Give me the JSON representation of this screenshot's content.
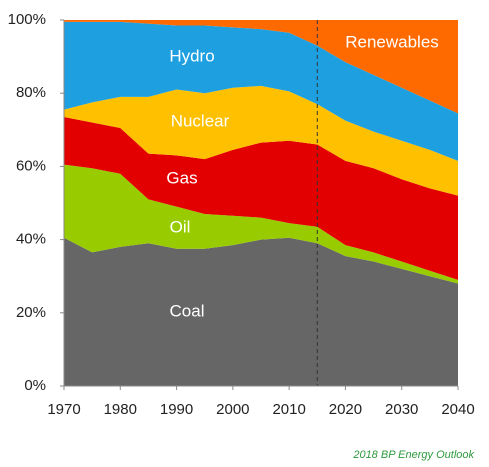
{
  "chart_data": {
    "type": "stacked_area",
    "x": [
      1970,
      1975,
      1980,
      1985,
      1990,
      1995,
      2000,
      2005,
      2010,
      2015,
      2020,
      2025,
      2030,
      2035,
      2040
    ],
    "series": [
      {
        "name": "Coal",
        "color": "#666666",
        "values": [
          40.5,
          36.5,
          38,
          39,
          37.5,
          37.5,
          38.5,
          40,
          40.5,
          39,
          35.5,
          34,
          32,
          30,
          28
        ]
      },
      {
        "name": "Oil",
        "color": "#99cc00",
        "values": [
          20,
          23,
          20,
          12,
          11.5,
          9.5,
          8,
          6,
          4,
          4.5,
          3,
          2.5,
          2,
          1.5,
          1
        ]
      },
      {
        "name": "Gas",
        "color": "#e30000",
        "values": [
          13,
          12.5,
          12.5,
          12.5,
          14,
          15,
          18,
          20.5,
          22.5,
          22.5,
          23,
          23,
          22.5,
          22.5,
          23
        ]
      },
      {
        "name": "Nuclear",
        "color": "#ffc000",
        "values": [
          2,
          5.5,
          8.5,
          15.5,
          18,
          18,
          17,
          15.5,
          13.5,
          11,
          11,
          10,
          10.5,
          10.5,
          9.5
        ]
      },
      {
        "name": "Hydro",
        "color": "#1ea0e0",
        "values": [
          24,
          22,
          20.5,
          20,
          17.5,
          18.5,
          16.5,
          15.5,
          16,
          16,
          16,
          15.5,
          14.5,
          13.5,
          13
        ]
      },
      {
        "name": "Renewables",
        "color": "#ff6a00",
        "values": [
          0.5,
          0.5,
          0.5,
          1,
          1.5,
          1.5,
          2,
          2.5,
          3.5,
          7,
          11.5,
          15,
          18.5,
          22,
          25.5
        ]
      }
    ],
    "xlim": [
      1970,
      2040
    ],
    "xticks": [
      1970,
      1980,
      1990,
      2000,
      2010,
      2020,
      2030,
      2040
    ],
    "ylim": [
      0,
      100
    ],
    "yticks": [
      {
        "value": 0,
        "label": "0%"
      },
      {
        "value": 20,
        "label": "20%"
      },
      {
        "value": 40,
        "label": "40%"
      },
      {
        "value": 60,
        "label": "60%"
      },
      {
        "value": 80,
        "label": "80%"
      },
      {
        "value": 100,
        "label": "100%"
      }
    ],
    "vline": 2015,
    "source": "2018 BP Energy Outlook"
  }
}
